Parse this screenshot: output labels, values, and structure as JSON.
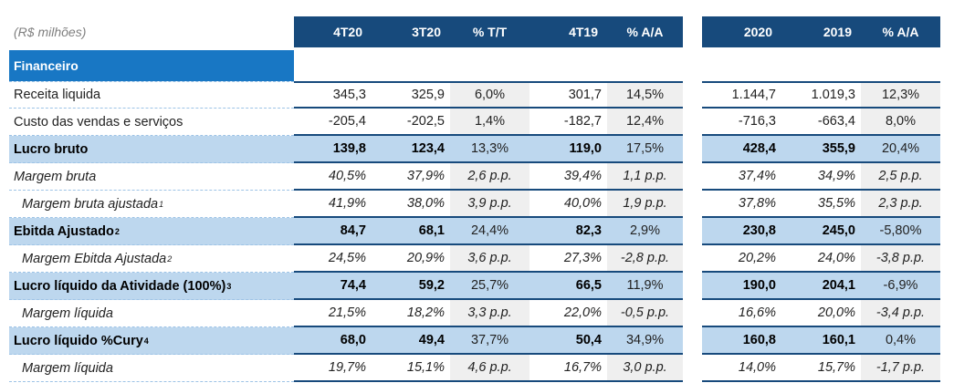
{
  "unit_label": "(R$ milhões)",
  "section_label": "Financeiro",
  "colors": {
    "header_navy": "#174A7C",
    "section_blue": "#1877C4",
    "highlight_blue": "#BDD7EE",
    "band_gray": "#EFEFEF",
    "border_navy": "#174A7C",
    "dash_blue": "#9DC3E6"
  },
  "table": {
    "quarter_headers": [
      "4T20",
      "3T20",
      "% T/T",
      "4T19",
      "% A/A"
    ],
    "year_headers": [
      "2020",
      "2019",
      "% A/A"
    ],
    "rows": [
      {
        "label": "Receita liquida",
        "sup": "",
        "values": [
          "345,3",
          "325,9",
          "6,0%",
          "301,7",
          "14,5%",
          "1.144,7",
          "1.019,3",
          "12,3%"
        ]
      },
      {
        "label": "Custo das vendas e serviços",
        "sup": "",
        "values": [
          "-205,4",
          "-202,5",
          "1,4%",
          "-182,7",
          "12,4%",
          "-716,3",
          "-663,4",
          "8,0%"
        ]
      },
      {
        "label": "Lucro bruto",
        "sup": "",
        "values": [
          "139,8",
          "123,4",
          "13,3%",
          "119,0",
          "17,5%",
          "428,4",
          "355,9",
          "20,4%"
        ]
      },
      {
        "label": "Margem bruta",
        "sup": "",
        "values": [
          "40,5%",
          "37,9%",
          "2,6 p.p.",
          "39,4%",
          "1,1 p.p.",
          "37,4%",
          "34,9%",
          "2,5 p.p."
        ]
      },
      {
        "label": "Margem bruta ajustada",
        "sup": "1",
        "values": [
          "41,9%",
          "38,0%",
          "3,9 p.p.",
          "40,0%",
          "1,9 p.p.",
          "37,8%",
          "35,5%",
          "2,3 p.p."
        ]
      },
      {
        "label": "Ebitda Ajustado",
        "sup": "2",
        "values": [
          "84,7",
          "68,1",
          "24,4%",
          "82,3",
          "2,9%",
          "230,8",
          "245,0",
          "-5,80%"
        ]
      },
      {
        "label": "Margem Ebitda Ajustada",
        "sup": "2",
        "values": [
          "24,5%",
          "20,9%",
          "3,6 p.p.",
          "27,3%",
          "-2,8 p.p.",
          "20,2%",
          "24,0%",
          "-3,8 p.p."
        ]
      },
      {
        "label": "Lucro líquido da Atividade (100%)",
        "sup": "3",
        "values": [
          "74,4",
          "59,2",
          "25,7%",
          "66,5",
          "11,9%",
          "190,0",
          "204,1",
          "-6,9%"
        ]
      },
      {
        "label": "Margem líquida",
        "sup": "",
        "values": [
          "21,5%",
          "18,2%",
          "3,3 p.p.",
          "22,0%",
          "-0,5 p.p.",
          "16,6%",
          "20,0%",
          "-3,4 p.p."
        ]
      },
      {
        "label": "Lucro líquido %Cury",
        "sup": "4",
        "values": [
          "68,0",
          "49,4",
          "37,7%",
          "50,4",
          "34,9%",
          "160,8",
          "160,1",
          "0,4%"
        ]
      },
      {
        "label": "Margem líquida",
        "sup": "",
        "values": [
          "19,7%",
          "15,1%",
          "4,6 p.p.",
          "16,7%",
          "3,0 p.p.",
          "14,0%",
          "15,7%",
          "-1,7 p.p."
        ]
      }
    ]
  }
}
